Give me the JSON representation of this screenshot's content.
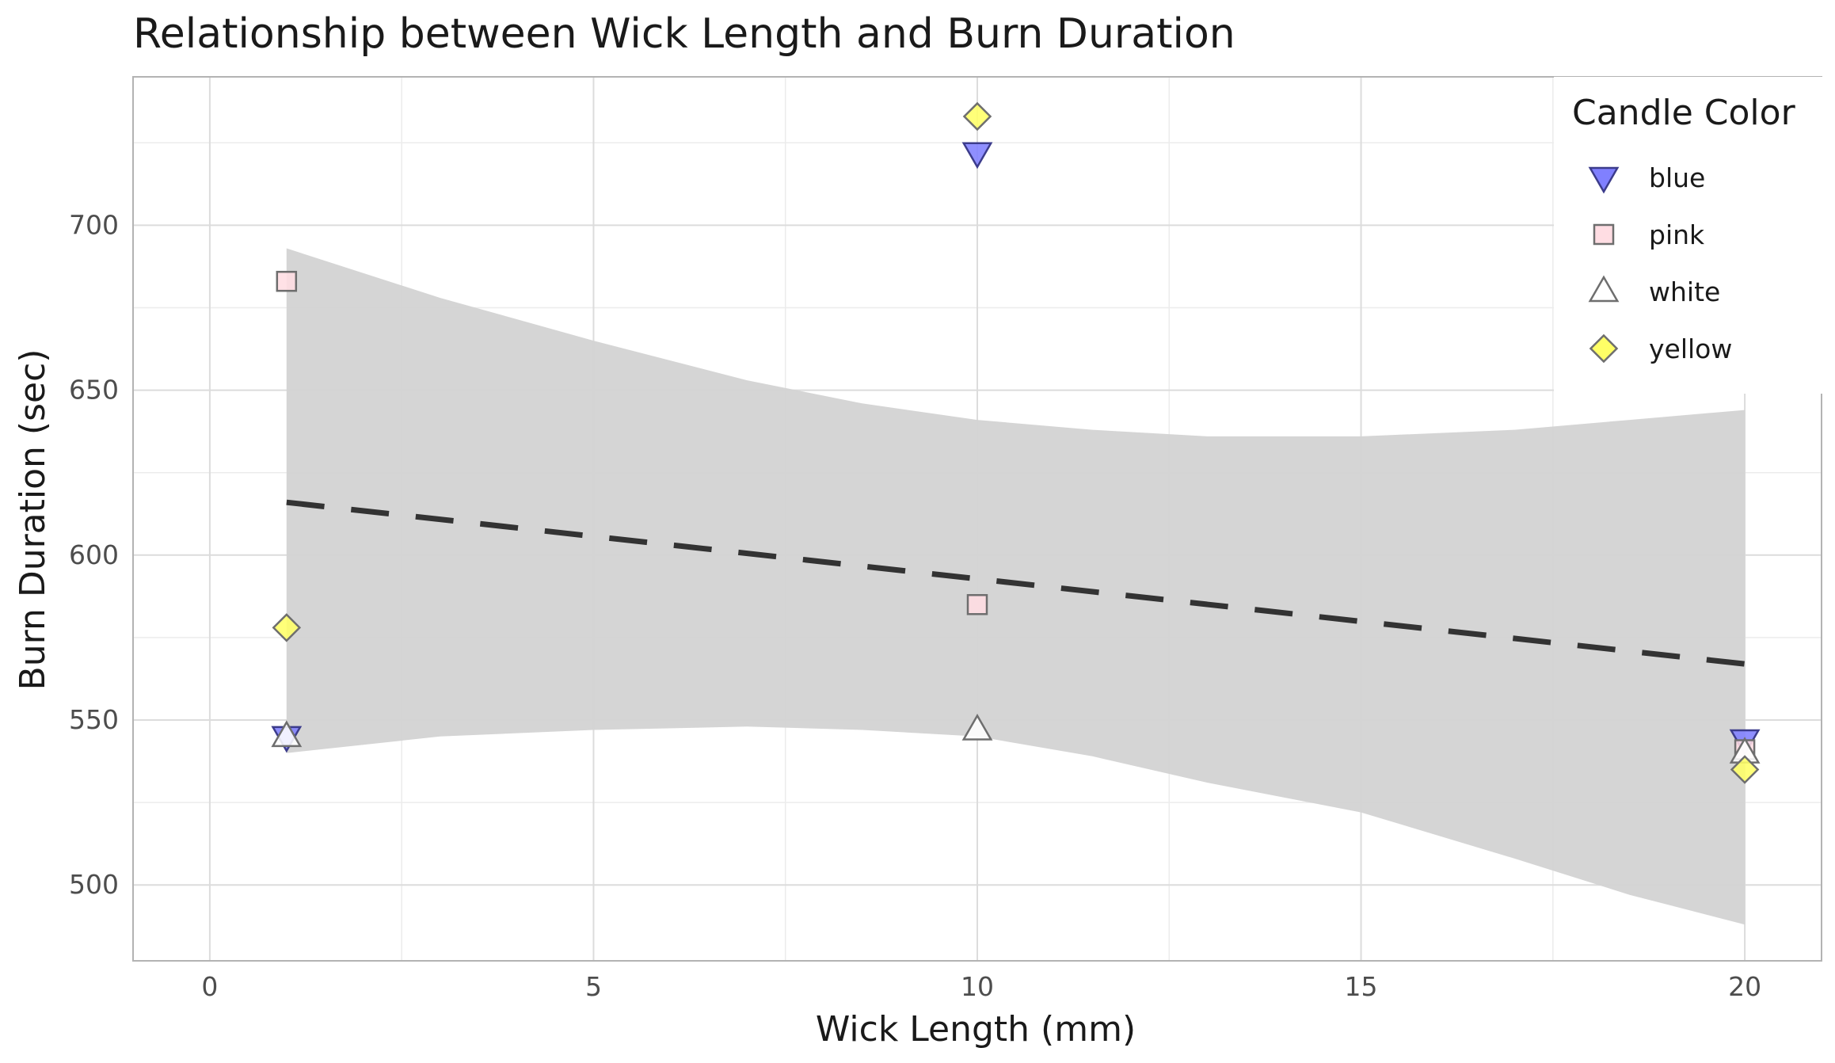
{
  "chart_data": {
    "type": "scatter",
    "title": "Relationship between Wick Length and Burn Duration",
    "xlabel": "Wick Length (mm)",
    "ylabel": "Burn Duration (sec)",
    "xlim": [
      -1,
      21
    ],
    "ylim": [
      477,
      745
    ],
    "x_ticks": [
      0,
      5,
      10,
      15,
      20
    ],
    "y_ticks": [
      500,
      550,
      600,
      650,
      700
    ],
    "grid": true,
    "legend": {
      "title": "Candle Color",
      "position": "top-right"
    },
    "series": [
      {
        "name": "blue",
        "marker": "triangle-down",
        "fill": "#8080ff",
        "stroke": "#3c3c8c",
        "x": [
          1,
          10,
          20
        ],
        "y": [
          545,
          722,
          544
        ]
      },
      {
        "name": "pink",
        "marker": "square",
        "fill": "#ffdde3",
        "stroke": "#6e6e6e",
        "x": [
          1,
          10,
          20
        ],
        "y": [
          683,
          585,
          541
        ]
      },
      {
        "name": "white",
        "marker": "triangle-up",
        "fill": "#ffffff",
        "stroke": "#6e6e6e",
        "x": [
          1,
          10,
          20
        ],
        "y": [
          545,
          547,
          540
        ]
      },
      {
        "name": "yellow",
        "marker": "diamond",
        "fill": "#ffff66",
        "stroke": "#6e6e6e",
        "x": [
          1,
          10,
          20
        ],
        "y": [
          578,
          733,
          535
        ]
      }
    ],
    "trend_line": {
      "style": "dashed",
      "color": "#333333",
      "x": [
        1,
        20
      ],
      "y": [
        616,
        567
      ]
    },
    "confidence_band": {
      "color": "#d3d3d3",
      "x": [
        1,
        3,
        5,
        7,
        8.5,
        10,
        11.5,
        13,
        15,
        17,
        18.5,
        20
      ],
      "upper": [
        693,
        678,
        665,
        653,
        646,
        641,
        638,
        636,
        636,
        638,
        641,
        644
      ],
      "lower": [
        540,
        545,
        547,
        548,
        547,
        545,
        539,
        531,
        522,
        508,
        497,
        488
      ]
    }
  }
}
